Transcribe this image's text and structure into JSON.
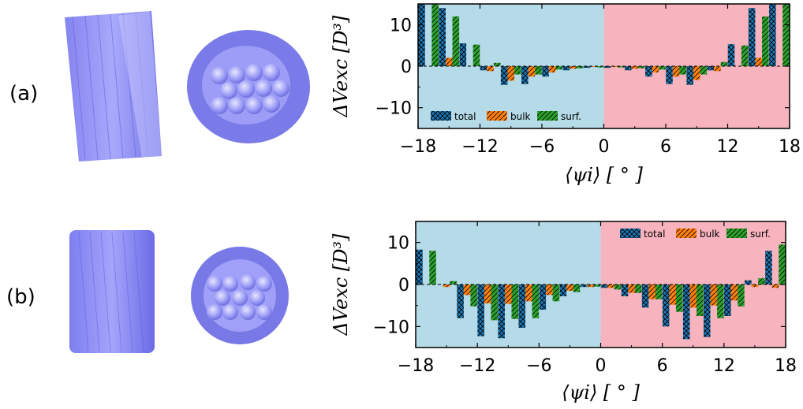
{
  "panels": {
    "a_label": "(a)",
    "b_label": "(b)"
  },
  "colors": {
    "left_bg": "#b5dae8",
    "right_bg": "#f7b4be",
    "total": "#1f77b4",
    "bulk": "#ff7f0e",
    "surf": "#2ca02c"
  },
  "chart_data": [
    {
      "type": "bar",
      "xlabel": "⟨ψi⟩ [ ° ]",
      "ylabel": "ΔVexc [D³]",
      "xlim": [
        -18,
        18
      ],
      "ylim": [
        -15,
        15
      ],
      "xticks": [
        "−18",
        "−12",
        "−6",
        "0",
        "6",
        "12",
        "18"
      ],
      "yticks": [
        "10",
        "0",
        "−10"
      ],
      "legend_position": "lower-left",
      "legend": [
        "total",
        "bulk",
        "surf."
      ],
      "x": [
        -17,
        -15,
        -13,
        -11,
        -9,
        -7,
        -5,
        -3,
        -1,
        1,
        3,
        5,
        7,
        9,
        11,
        13,
        15,
        17
      ],
      "series": [
        {
          "name": "total",
          "values": [
            15,
            14,
            5.5,
            -1.0,
            -4.5,
            -4.3,
            -2.5,
            -1.0,
            -0.4,
            -0.4,
            -1.0,
            -2.5,
            -4.3,
            -4.5,
            -1.0,
            5.3,
            14,
            15
          ]
        },
        {
          "name": "bulk",
          "values": [
            0,
            2,
            0,
            -1.2,
            -3.5,
            -2.5,
            -1.5,
            -0.6,
            -0.2,
            -0.2,
            -0.6,
            -1.5,
            -2.5,
            -3.3,
            -1.2,
            0,
            2,
            0
          ]
        },
        {
          "name": "surf.",
          "values": [
            15,
            12,
            5.2,
            0.8,
            -2.0,
            -2.0,
            -0.8,
            -0.5,
            -0.3,
            -0.3,
            -0.5,
            -0.8,
            -2.0,
            -2.0,
            1.0,
            5.0,
            12,
            15
          ]
        }
      ]
    },
    {
      "type": "bar",
      "xlabel": "⟨ψi⟩ [ ° ]",
      "ylabel": "ΔVexc [D³]",
      "xlim": [
        -18,
        18
      ],
      "ylim": [
        -15,
        15
      ],
      "xticks": [
        "−18",
        "−12",
        "−6",
        "0",
        "6",
        "12",
        "18"
      ],
      "yticks": [
        "10",
        "0",
        "−10"
      ],
      "legend_position": "upper-right",
      "legend": [
        "total",
        "bulk",
        "surf."
      ],
      "x": [
        -17,
        -15,
        -13,
        -11,
        -9,
        -7,
        -5,
        -3,
        -1,
        1,
        3,
        5,
        7,
        9,
        11,
        13,
        15,
        17
      ],
      "series": [
        {
          "name": "total",
          "values": [
            8.3,
            0,
            -8.0,
            -12.3,
            -12.8,
            -10.3,
            -6.0,
            -2.8,
            -0.6,
            -0.8,
            -2.8,
            -5.5,
            -10.0,
            -13.0,
            -12.5,
            -7.5,
            1.0,
            8.0
          ]
        },
        {
          "name": "bulk",
          "values": [
            0,
            -0.6,
            -2.5,
            -4.5,
            -4.6,
            -4.0,
            -2.5,
            -1.5,
            -0.6,
            -0.8,
            -2.0,
            -3.5,
            -4.8,
            -5.5,
            -5.0,
            -3.8,
            -0.6,
            -0.8
          ]
        },
        {
          "name": "surf.",
          "values": [
            8.0,
            0.8,
            -5.2,
            -8.5,
            -8.2,
            -8.0,
            -4.0,
            -1.8,
            -0.5,
            -1.2,
            -2.0,
            -3.5,
            -6.5,
            -7.5,
            -8.0,
            -5.2,
            1.5,
            9.5
          ]
        }
      ]
    }
  ]
}
